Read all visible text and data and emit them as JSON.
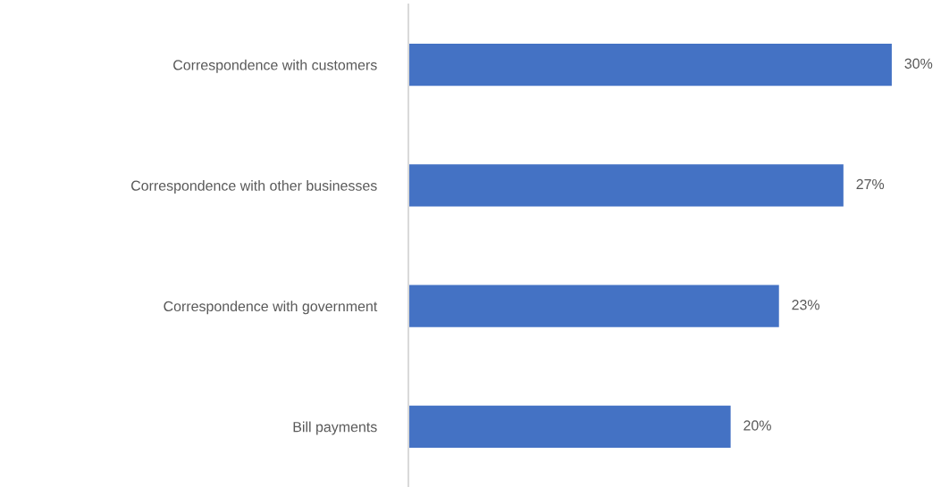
{
  "chart_data": {
    "type": "bar",
    "orientation": "horizontal",
    "categories": [
      "Correspondence with customers",
      "Correspondence with other businesses",
      "Correspondence with government",
      "Bill payments"
    ],
    "values": [
      30,
      27,
      23,
      20
    ],
    "color": "#4472c4",
    "value_labels": [
      "30%",
      "27%",
      "23%",
      "20%"
    ],
    "grid": false,
    "legend": false,
    "tick_labels": "y"
  }
}
